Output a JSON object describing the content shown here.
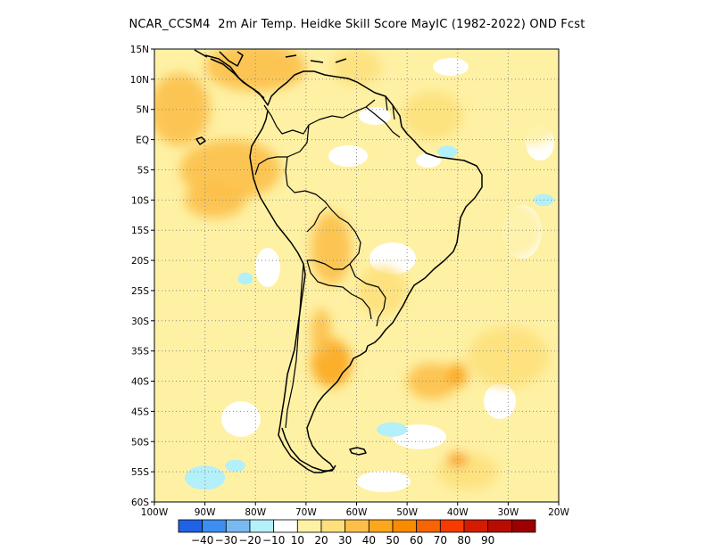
{
  "title": "NCAR_CCSM4  2m Air Temp. Heidke Skill Score MayIC (1982-2022) OND Fcst",
  "map": {
    "lon_range": [
      -100,
      -20
    ],
    "lat_range": [
      -60,
      15
    ],
    "lat_ticks": [
      {
        "lat": 15,
        "label": "15N"
      },
      {
        "lat": 10,
        "label": "10N"
      },
      {
        "lat": 5,
        "label": "5N"
      },
      {
        "lat": 0,
        "label": "EQ"
      },
      {
        "lat": -5,
        "label": "5S"
      },
      {
        "lat": -10,
        "label": "10S"
      },
      {
        "lat": -15,
        "label": "15S"
      },
      {
        "lat": -20,
        "label": "20S"
      },
      {
        "lat": -25,
        "label": "25S"
      },
      {
        "lat": -30,
        "label": "30S"
      },
      {
        "lat": -35,
        "label": "35S"
      },
      {
        "lat": -40,
        "label": "40S"
      },
      {
        "lat": -45,
        "label": "45S"
      },
      {
        "lat": -50,
        "label": "50S"
      },
      {
        "lat": -55,
        "label": "55S"
      },
      {
        "lat": -60,
        "label": "60S"
      }
    ],
    "lon_ticks": [
      {
        "lon": -100,
        "label": "100W"
      },
      {
        "lon": -90,
        "label": "90W"
      },
      {
        "lon": -80,
        "label": "80W"
      },
      {
        "lon": -70,
        "label": "70W"
      },
      {
        "lon": -60,
        "label": "60W"
      },
      {
        "lon": -50,
        "label": "50W"
      },
      {
        "lon": -40,
        "label": "40W"
      },
      {
        "lon": -30,
        "label": "30W"
      },
      {
        "lon": -20,
        "label": "20W"
      }
    ],
    "grid": "dotted"
  },
  "colorbar": {
    "colors": [
      "#1f62e5",
      "#3c8ff0",
      "#79b9f2",
      "#b3f0f9",
      "#ffffff",
      "#fef1a4",
      "#fde07c",
      "#fcc04a",
      "#fba71e",
      "#f98b00",
      "#f76400",
      "#f53b00",
      "#d51b00",
      "#b90c00",
      "#9c0000"
    ],
    "labels": [
      "-40",
      "-30",
      "-20",
      "-10",
      "10",
      "20",
      "30",
      "40",
      "50",
      "60",
      "70",
      "80",
      "90"
    ]
  },
  "chart_data": {
    "type": "heatmap",
    "variable": "2m Air Temp. Heidke Skill Score",
    "period": "1982-2022",
    "lon_range": [
      -100,
      -20
    ],
    "lat_range": [
      -60,
      15
    ],
    "bins": [
      -40,
      -30,
      -20,
      -10,
      10,
      20,
      30,
      40,
      50,
      60,
      70,
      80,
      90
    ],
    "regions": [
      {
        "lon": -95,
        "lat": 5,
        "r_lon": 6,
        "r_lat": 6,
        "value": 32
      },
      {
        "lon": -85,
        "lat": -5,
        "r_lon": 10,
        "r_lat": 5,
        "value": 30
      },
      {
        "lon": -88,
        "lat": -10,
        "r_lon": 6,
        "r_lat": 3,
        "value": 38
      },
      {
        "lon": -80,
        "lat": 12,
        "r_lon": 10,
        "r_lat": 4,
        "value": 30
      },
      {
        "lon": -60,
        "lat": 12,
        "r_lon": 5,
        "r_lat": 3,
        "value": 28
      },
      {
        "lon": -45,
        "lat": 4,
        "r_lon": 6,
        "r_lat": 4,
        "value": 22
      },
      {
        "lon": -65,
        "lat": -18,
        "r_lon": 4,
        "r_lat": 6,
        "value": 38
      },
      {
        "lon": -55,
        "lat": -25,
        "r_lon": 5,
        "r_lat": 4,
        "value": 22
      },
      {
        "lon": -65,
        "lat": -37,
        "r_lon": 4,
        "r_lat": 4,
        "value": 45
      },
      {
        "lon": -67,
        "lat": -32,
        "r_lon": 2,
        "r_lat": 4,
        "value": 35
      },
      {
        "lon": -45,
        "lat": -40,
        "r_lon": 5,
        "r_lat": 3,
        "value": 32
      },
      {
        "lon": -40,
        "lat": -39,
        "r_lon": 2,
        "r_lat": 2,
        "value": 45
      },
      {
        "lon": -30,
        "lat": -36,
        "r_lon": 8,
        "r_lat": 5,
        "value": 25
      },
      {
        "lon": -38,
        "lat": -55,
        "r_lon": 6,
        "r_lat": 3,
        "value": 28
      },
      {
        "lon": -40,
        "lat": -53,
        "r_lon": 2,
        "r_lat": 1,
        "value": 55
      },
      {
        "lon": -90,
        "lat": -35,
        "r_lon": 8,
        "r_lat": 6,
        "value": 15
      },
      {
        "lon": -25,
        "lat": 5,
        "r_lon": 6,
        "r_lat": 6,
        "value": 18
      },
      {
        "lon": -30,
        "lat": -15,
        "r_lon": 7,
        "r_lat": 5,
        "value": 15
      }
    ],
    "negative_regions": [
      {
        "lon": -90,
        "lat": -56,
        "r_lon": 4,
        "r_lat": 2,
        "value": -12
      },
      {
        "lon": -84,
        "lat": -54,
        "r_lon": 2,
        "r_lat": 1,
        "value": -12
      },
      {
        "lon": -53,
        "lat": -48,
        "r_lon": 3,
        "r_lat": 1.2,
        "value": -12
      },
      {
        "lon": -82,
        "lat": -23,
        "r_lon": 1.5,
        "r_lat": 1,
        "value": -12
      },
      {
        "lon": -42,
        "lat": -2,
        "r_lon": 2,
        "r_lat": 1,
        "value": -12
      },
      {
        "lon": -23,
        "lat": -10,
        "r_lon": 2,
        "r_lat": 1,
        "value": -12
      }
    ]
  }
}
